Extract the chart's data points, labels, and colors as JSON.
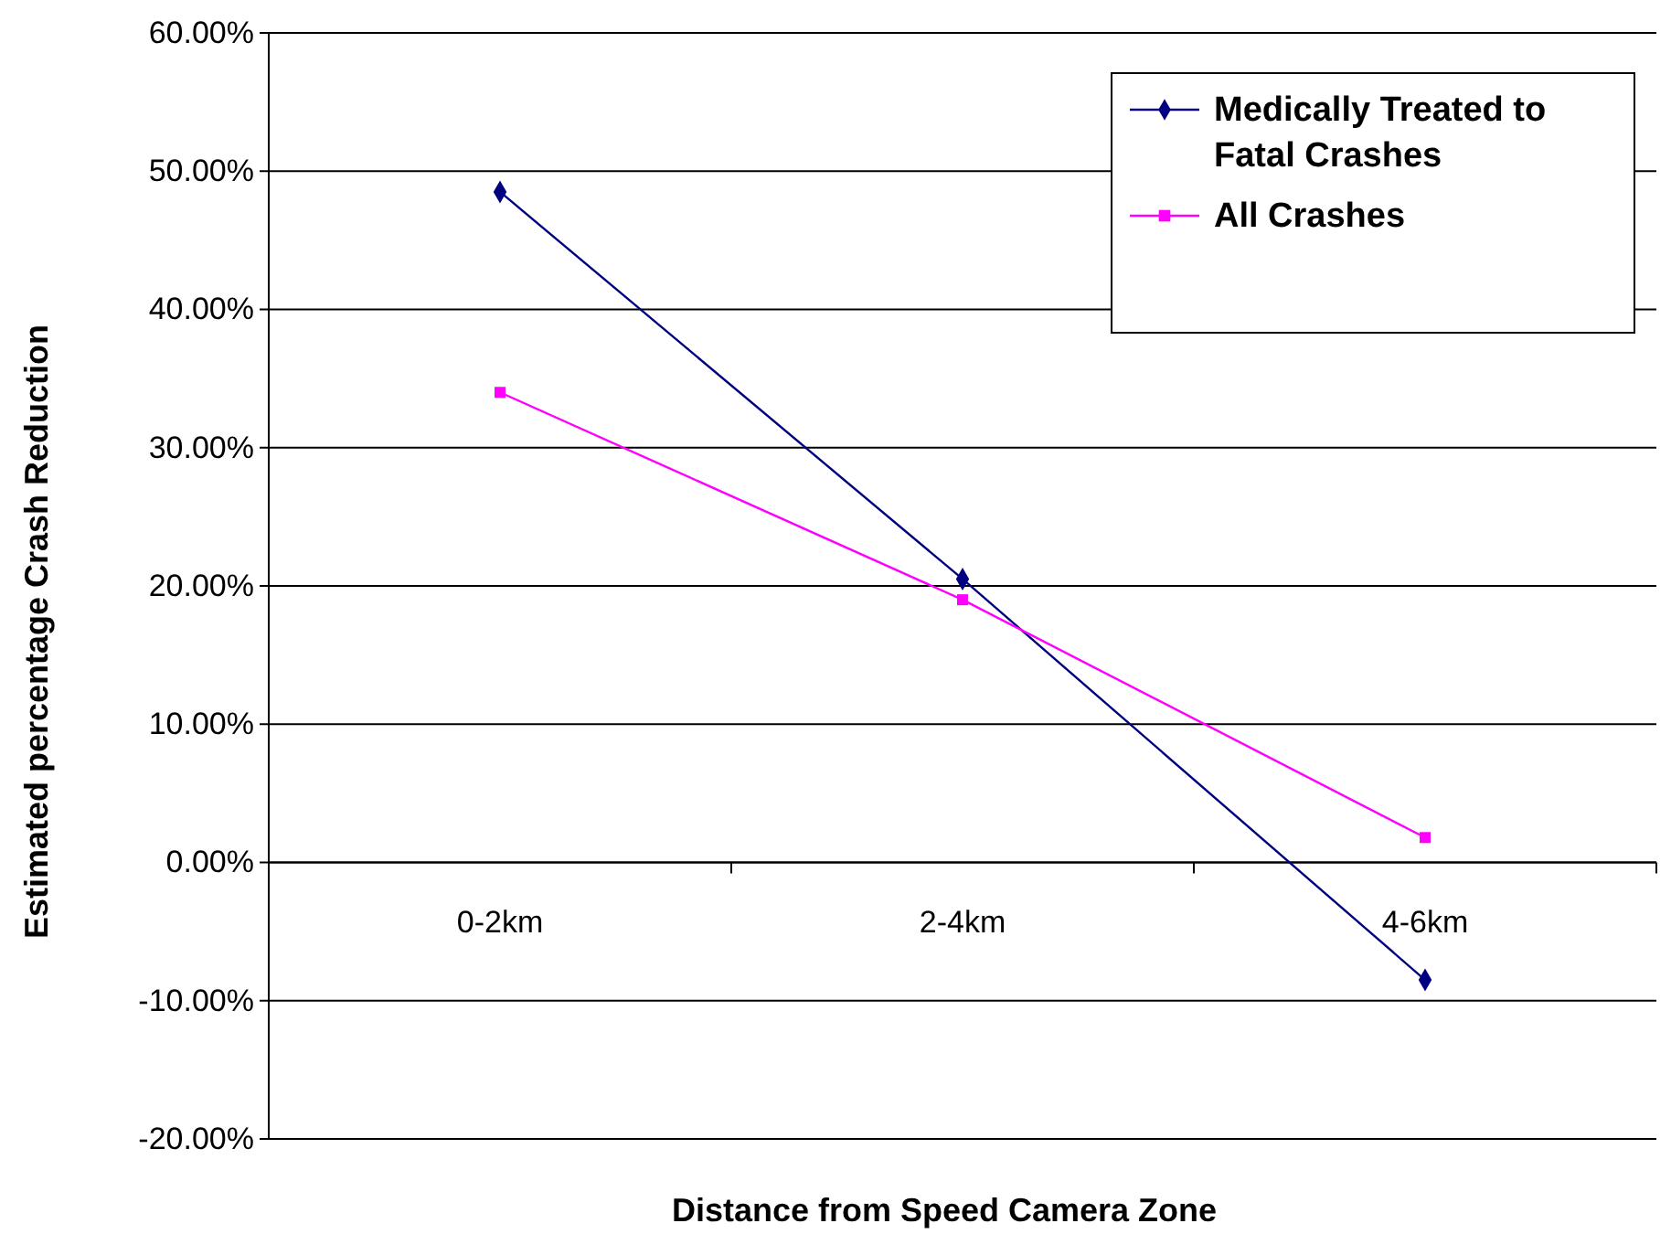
{
  "chart_data": {
    "type": "line",
    "xlabel": "Distance from Speed Camera Zone",
    "ylabel": "Estimated percentage Crash Reduction",
    "categories": [
      "0-2km",
      "2-4km",
      "4-6km"
    ],
    "series": [
      {
        "name": "Medically Treated to Fatal Crashes",
        "color": "#000080",
        "values": [
          0.485,
          0.205,
          -0.085
        ],
        "marker": "diamond"
      },
      {
        "name": "All Crashes",
        "color": "#ff00ff",
        "values": [
          0.34,
          0.19,
          0.018
        ],
        "marker": "square"
      }
    ],
    "ylim": [
      -0.2,
      0.6
    ],
    "yticks": [
      {
        "value": -0.2,
        "label": "-20.00%"
      },
      {
        "value": -0.1,
        "label": "-10.00%"
      },
      {
        "value": 0,
        "label": "0.00%"
      },
      {
        "value": 0.1,
        "label": "10.00%"
      },
      {
        "value": 0.2,
        "label": "20.00%"
      },
      {
        "value": 0.3,
        "label": "30.00%"
      },
      {
        "value": 0.4,
        "label": "40.00%"
      },
      {
        "value": 0.5,
        "label": "50.00%"
      },
      {
        "value": 0.6,
        "label": "60.00%"
      }
    ],
    "grid": "y",
    "legend": "top right",
    "line_style": "solid"
  }
}
